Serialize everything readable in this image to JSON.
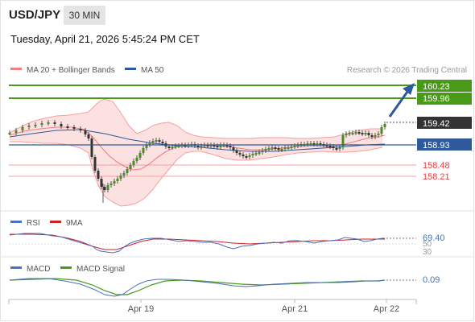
{
  "header": {
    "symbol": "USD/JPY",
    "timeframe": "30 MIN",
    "datetime": "Tuesday, April 21, 2026 5:45:24 PM CET"
  },
  "legend": {
    "items": [
      {
        "label": "MA 20 + Bollinger Bands",
        "color": "#f08080"
      },
      {
        "label": "MA 50",
        "color": "#2e5a9c"
      }
    ],
    "copyright": "Research © 2026 Trading Central"
  },
  "levels": {
    "resistance": [
      "160.23",
      "159.96"
    ],
    "current": "159.42",
    "pivot": "158.93",
    "support": [
      "158.48",
      "158.21"
    ]
  },
  "rsi": {
    "title": "RSI",
    "ma_label": "9MA",
    "value": "69.40",
    "level_50": "50",
    "level_30": "30"
  },
  "macd": {
    "title": "MACD",
    "signal_label": "MACD Signal",
    "value": "0.09"
  },
  "x_axis": {
    "ticks": [
      "Apr 19",
      "Apr 21",
      "Apr 22"
    ]
  },
  "colors": {
    "green": "#4a9a1a",
    "pivot_blue": "#2e5a9c",
    "support_red": "#e04040",
    "current_dark": "#333333",
    "rsi_blue": "#4a6fc1",
    "rsi_red": "#d02020",
    "macd_blue": "#4a6fc1",
    "macd_green": "#4a9a1a"
  }
}
